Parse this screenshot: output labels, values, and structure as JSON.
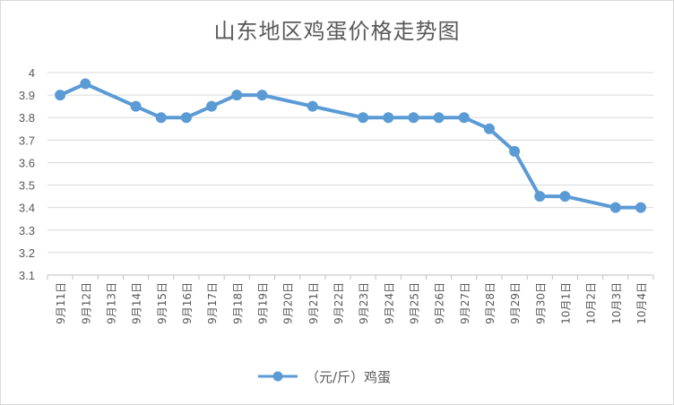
{
  "chart_data": {
    "type": "line",
    "title": "山东地区鸡蛋价格走势图",
    "categories": [
      "9月11日",
      "9月12日",
      "9月13日",
      "9月14日",
      "9月15日",
      "9月16日",
      "9月17日",
      "9月18日",
      "9月19日",
      "9月20日",
      "9月21日",
      "9月22日",
      "9月23日",
      "9月24日",
      "9月25日",
      "9月26日",
      "9月27日",
      "9月28日",
      "9月29日",
      "9月30日",
      "10月1日",
      "10月2日",
      "10月3日",
      "10月4日"
    ],
    "series": [
      {
        "name": "（元/斤）鸡蛋",
        "values": [
          3.9,
          3.95,
          null,
          3.85,
          3.8,
          3.8,
          3.85,
          3.9,
          3.9,
          null,
          3.85,
          null,
          3.8,
          3.8,
          3.8,
          3.8,
          3.8,
          3.75,
          3.65,
          3.45,
          3.45,
          null,
          3.4,
          3.4
        ]
      }
    ],
    "yticks": [
      "3.1",
      "3.2",
      "3.3",
      "3.4",
      "3.5",
      "3.6",
      "3.7",
      "3.8",
      "3.9",
      "4"
    ],
    "ylim": [
      3.1,
      4.0
    ],
    "grid": true,
    "legend_position": "bottom",
    "colors": {
      "series": "#5b9bd5",
      "grid": "#d9d9d9",
      "axis": "#bfbfbf",
      "text": "#595959"
    }
  }
}
